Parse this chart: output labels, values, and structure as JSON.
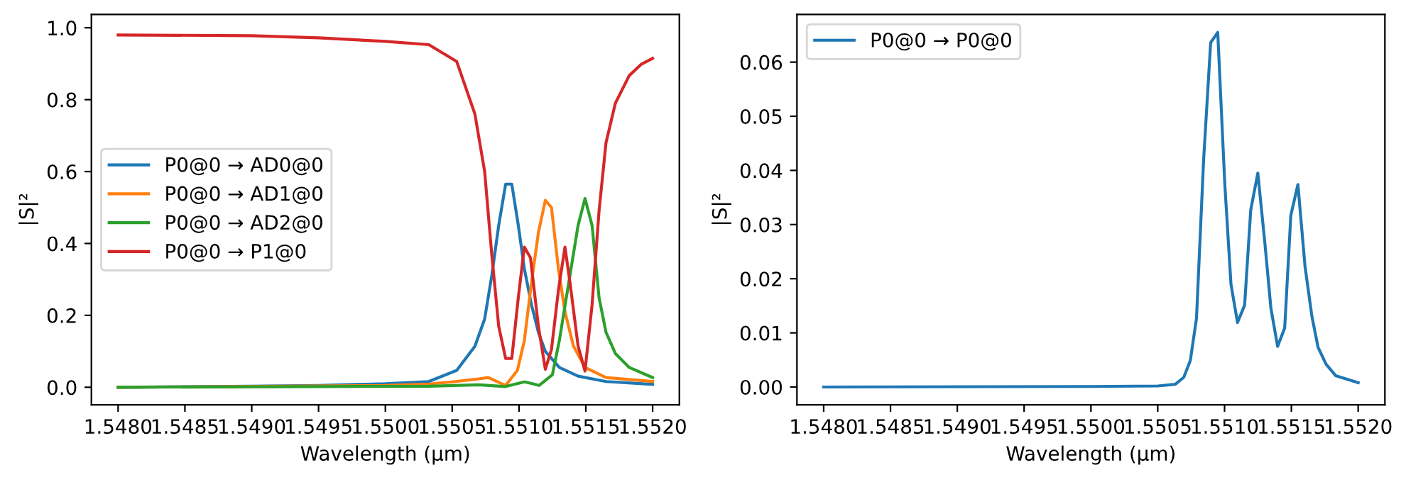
{
  "chart_data": [
    {
      "type": "line",
      "xlabel": "Wavelength (µm)",
      "ylabel": "|S|²",
      "legend": "center left",
      "grid": false,
      "xlim": [
        1.5478,
        1.5522
      ],
      "ylim": [
        -0.049,
        1.037
      ],
      "xticks": [
        {
          "value": 1.548,
          "label": "1.5480"
        },
        {
          "value": 1.5485,
          "label": "1.5485"
        },
        {
          "value": 1.549,
          "label": "1.5490"
        },
        {
          "value": 1.5495,
          "label": "1.5495"
        },
        {
          "value": 1.55,
          "label": "1.5500"
        },
        {
          "value": 1.5505,
          "label": "1.5505"
        },
        {
          "value": 1.551,
          "label": "1.5510"
        },
        {
          "value": 1.5515,
          "label": "1.5515"
        },
        {
          "value": 1.552,
          "label": "1.5520"
        }
      ],
      "yticks": [
        {
          "value": 0,
          "label": "0.0"
        },
        {
          "value": 0.2,
          "label": "0.2"
        },
        {
          "value": 0.4,
          "label": "0.4"
        },
        {
          "value": 0.6,
          "label": "0.6"
        },
        {
          "value": 0.8,
          "label": "0.8"
        },
        {
          "value": 1,
          "label": "1.0"
        }
      ],
      "series": [
        {
          "name": "P0@0 → AD0@0",
          "color": "#1f77b4",
          "x": [
            1.548,
            1.549,
            1.5495,
            1.55,
            1.550325,
            1.550534,
            1.55067,
            1.550743,
            1.550796,
            1.550848,
            1.5509,
            1.550946,
            1.550995,
            1.55104,
            1.551093,
            1.551145,
            1.551197,
            1.551302,
            1.551442,
            1.551651,
            1.552
          ],
          "values": [
            0.0,
            0.003,
            0.005,
            0.01,
            0.016,
            0.047,
            0.114,
            0.19,
            0.31,
            0.45,
            0.565,
            0.565,
            0.45,
            0.33,
            0.23,
            0.153,
            0.1,
            0.055,
            0.031,
            0.016,
            0.008
          ]
        },
        {
          "name": "P0@0 → AD1@0",
          "color": "#ff7f0e",
          "x": [
            1.548,
            1.55,
            1.550325,
            1.5505,
            1.55067,
            1.55077,
            1.5509,
            1.550988,
            1.55104,
            1.551093,
            1.551145,
            1.551197,
            1.551243,
            1.551295,
            1.551344,
            1.551407,
            1.551494,
            1.551651,
            1.552
          ],
          "values": [
            0.0,
            0.005,
            0.009,
            0.015,
            0.022,
            0.027,
            0.005,
            0.047,
            0.13,
            0.29,
            0.43,
            0.52,
            0.5,
            0.33,
            0.21,
            0.115,
            0.055,
            0.027,
            0.016
          ]
        },
        {
          "name": "P0@0 → AD2@0",
          "color": "#2ca02c",
          "x": [
            1.548,
            1.550325,
            1.5507,
            1.5509,
            1.55104,
            1.5511,
            1.55115,
            1.55125,
            1.551302,
            1.551372,
            1.551442,
            1.551494,
            1.551547,
            1.551599,
            1.551651,
            1.551721,
            1.551825,
            1.552
          ],
          "values": [
            0.0,
            0.003,
            0.007,
            0.002,
            0.015,
            0.01,
            0.005,
            0.035,
            0.13,
            0.29,
            0.45,
            0.525,
            0.45,
            0.25,
            0.153,
            0.094,
            0.055,
            0.027
          ]
        },
        {
          "name": "P0@0 → P1@0",
          "color": "#d62728",
          "x": [
            1.548,
            1.549,
            1.5495,
            1.55,
            1.550325,
            1.550534,
            1.55067,
            1.550743,
            1.550796,
            1.550848,
            1.5509,
            1.550946,
            1.550995,
            1.55104,
            1.551086,
            1.551145,
            1.551197,
            1.551243,
            1.551295,
            1.551344,
            1.551382,
            1.551442,
            1.551494,
            1.551547,
            1.551599,
            1.551651,
            1.551721,
            1.551825,
            1.551913,
            1.552
          ],
          "values": [
            0.98,
            0.978,
            0.972,
            0.962,
            0.953,
            0.906,
            0.76,
            0.6,
            0.37,
            0.17,
            0.08,
            0.08,
            0.25,
            0.39,
            0.36,
            0.17,
            0.05,
            0.105,
            0.27,
            0.39,
            0.29,
            0.115,
            0.045,
            0.23,
            0.49,
            0.68,
            0.79,
            0.867,
            0.898,
            0.915
          ]
        }
      ]
    },
    {
      "type": "line",
      "xlabel": "Wavelength (µm)",
      "ylabel": "|S|²",
      "legend": "top left",
      "grid": false,
      "xlim": [
        1.5478,
        1.5522
      ],
      "ylim": [
        -0.0033,
        0.0688
      ],
      "xticks": [
        {
          "value": 1.548,
          "label": "1.5480"
        },
        {
          "value": 1.5485,
          "label": "1.5485"
        },
        {
          "value": 1.549,
          "label": "1.5490"
        },
        {
          "value": 1.5495,
          "label": "1.5495"
        },
        {
          "value": 1.55,
          "label": "1.5500"
        },
        {
          "value": 1.5505,
          "label": "1.5505"
        },
        {
          "value": 1.551,
          "label": "1.5510"
        },
        {
          "value": 1.5515,
          "label": "1.5515"
        },
        {
          "value": 1.552,
          "label": "1.5520"
        }
      ],
      "yticks": [
        {
          "value": 0,
          "label": "0.00"
        },
        {
          "value": 0.01,
          "label": "0.01"
        },
        {
          "value": 0.02,
          "label": "0.02"
        },
        {
          "value": 0.03,
          "label": "0.03"
        },
        {
          "value": 0.04,
          "label": "0.04"
        },
        {
          "value": 0.05,
          "label": "0.05"
        },
        {
          "value": 0.06,
          "label": "0.06"
        }
      ],
      "series": [
        {
          "name": "P0@0 → P0@0",
          "color": "#1f77b4",
          "x": [
            1.548,
            1.55,
            1.5505,
            1.550632,
            1.550695,
            1.550744,
            1.55079,
            1.550843,
            1.550896,
            1.550949,
            1.551002,
            1.551048,
            1.551097,
            1.55115,
            1.551196,
            1.551249,
            1.551302,
            1.551347,
            1.551397,
            1.55145,
            1.551496,
            1.551549,
            1.551602,
            1.551654,
            1.5517,
            1.55176,
            1.551831,
            1.552
          ],
          "values": [
            0.0,
            0.0001,
            0.0002,
            0.0005,
            0.0018,
            0.0049,
            0.0127,
            0.0418,
            0.0636,
            0.0655,
            0.0374,
            0.019,
            0.0119,
            0.0151,
            0.0327,
            0.0395,
            0.0265,
            0.0145,
            0.0075,
            0.0109,
            0.0317,
            0.0374,
            0.0223,
            0.013,
            0.0073,
            0.0042,
            0.0021,
            0.0008
          ]
        }
      ]
    }
  ]
}
